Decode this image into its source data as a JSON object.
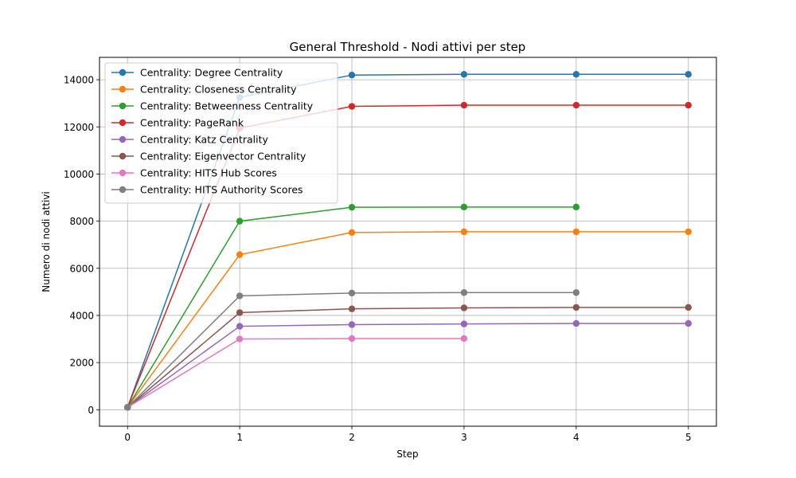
{
  "chart_data": {
    "type": "line",
    "title": "General Threshold - Nodi attivi per step",
    "xlabel": "Step",
    "ylabel": "Numero di nodi attivi",
    "xlim": [
      -0.25,
      5.25
    ],
    "ylim": [
      -700,
      14950
    ],
    "xticks": [
      0,
      1,
      2,
      3,
      4,
      5
    ],
    "yticks": [
      0,
      2000,
      4000,
      6000,
      8000,
      10000,
      12000,
      14000
    ],
    "grid": true,
    "legend_position": "top-left",
    "series": [
      {
        "name": "Centrality: Degree Centrality",
        "color": "#1f77b4",
        "x": [
          0,
          1,
          2,
          3,
          4,
          5
        ],
        "y": [
          100,
          13250,
          14200,
          14230,
          14230,
          14230
        ]
      },
      {
        "name": "Centrality: Closeness Centrality",
        "color": "#ff7f0e",
        "x": [
          0,
          1,
          2,
          3,
          4,
          5
        ],
        "y": [
          100,
          6580,
          7520,
          7550,
          7550,
          7550
        ]
      },
      {
        "name": "Centrality: Betweenness Centrality",
        "color": "#2ca02c",
        "x": [
          0,
          1,
          2,
          3,
          4
        ],
        "y": [
          100,
          8000,
          8590,
          8600,
          8600
        ]
      },
      {
        "name": "Centrality: PageRank",
        "color": "#d62728",
        "x": [
          0,
          1,
          2,
          3,
          4,
          5
        ],
        "y": [
          100,
          11950,
          12870,
          12920,
          12920,
          12920
        ]
      },
      {
        "name": "Centrality: Katz Centrality",
        "color": "#9467bd",
        "x": [
          0,
          1,
          2,
          3,
          4,
          5
        ],
        "y": [
          100,
          3540,
          3610,
          3640,
          3660,
          3660
        ]
      },
      {
        "name": "Centrality: Eigenvector Centrality",
        "color": "#8c564b",
        "x": [
          0,
          1,
          2,
          3,
          4,
          5
        ],
        "y": [
          100,
          4120,
          4280,
          4320,
          4340,
          4340
        ]
      },
      {
        "name": "Centrality: HITS Hub Scores",
        "color": "#e377c2",
        "x": [
          0,
          1,
          2,
          3
        ],
        "y": [
          100,
          3000,
          3020,
          3020
        ]
      },
      {
        "name": "Centrality: HITS Authority Scores",
        "color": "#7f7f7f",
        "x": [
          0,
          1,
          2,
          3,
          4
        ],
        "y": [
          100,
          4830,
          4950,
          4970,
          4970
        ]
      }
    ]
  }
}
